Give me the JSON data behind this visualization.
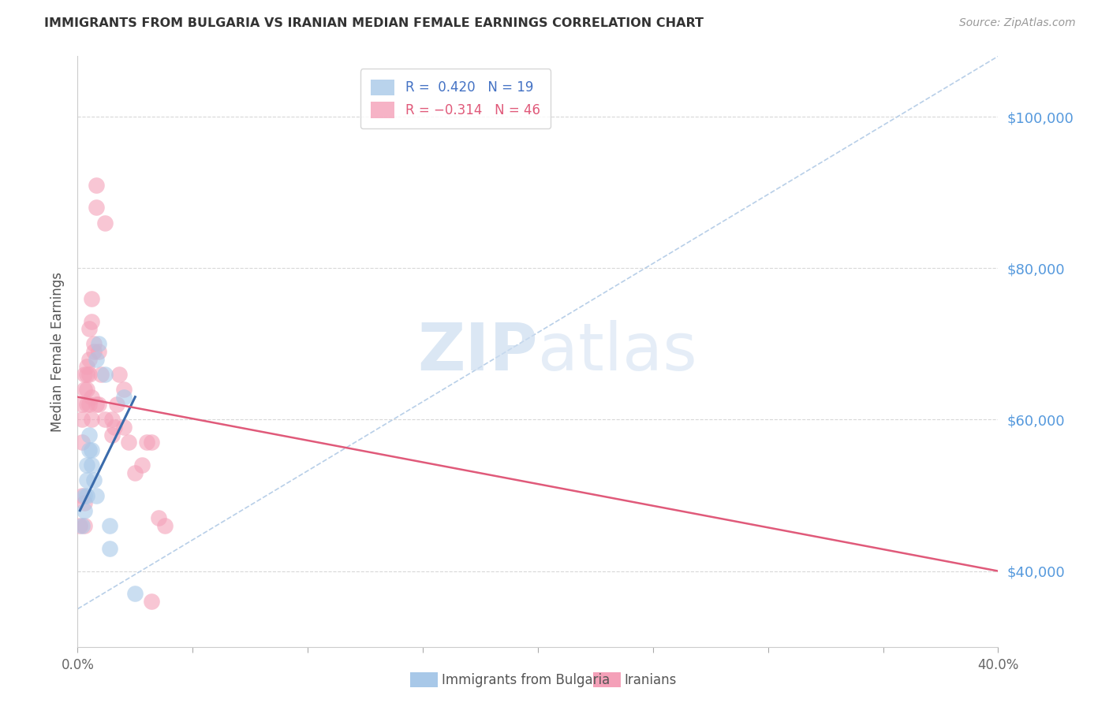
{
  "title": "IMMIGRANTS FROM BULGARIA VS IRANIAN MEDIAN FEMALE EARNINGS CORRELATION CHART",
  "source": "Source: ZipAtlas.com",
  "ylabel": "Median Female Earnings",
  "xlim": [
    0.0,
    0.4
  ],
  "ylim": [
    30000,
    108000
  ],
  "yticks": [
    40000,
    60000,
    80000,
    100000
  ],
  "ytick_labels": [
    "$40,000",
    "$60,000",
    "$80,000",
    "$100,000"
  ],
  "xticks": [
    0.0,
    0.05,
    0.1,
    0.15,
    0.2,
    0.25,
    0.3,
    0.35,
    0.4
  ],
  "xtick_labels": [
    "0.0%",
    "",
    "",
    "",
    "",
    "",
    "",
    "",
    "40.0%"
  ],
  "bg_color": "#ffffff",
  "grid_color": "#d8d8d8",
  "right_tick_color": "#5599dd",
  "bulgaria_color": "#a8c8e8",
  "iran_color": "#f4a0b8",
  "bulgaria_trendline_color": "#3a6bab",
  "iran_trendline_color": "#e05a7a",
  "dashed_line_color": "#b8cfe8",
  "watermark_color": "#ccddf0",
  "legend_blue_text": "#4472c4",
  "legend_pink_text": "#e05a7a",
  "footer_labels": [
    "Immigrants from Bulgaria",
    "Iranians"
  ],
  "footer_colors": [
    "#a8c8e8",
    "#f4a0b8"
  ],
  "bulgaria_points": [
    [
      0.002,
      46000
    ],
    [
      0.003,
      48000
    ],
    [
      0.003,
      50000
    ],
    [
      0.004,
      50000
    ],
    [
      0.004,
      52000
    ],
    [
      0.004,
      54000
    ],
    [
      0.005,
      56000
    ],
    [
      0.005,
      58000
    ],
    [
      0.006,
      54000
    ],
    [
      0.006,
      56000
    ],
    [
      0.007,
      52000
    ],
    [
      0.008,
      50000
    ],
    [
      0.008,
      68000
    ],
    [
      0.009,
      70000
    ],
    [
      0.012,
      66000
    ],
    [
      0.014,
      46000
    ],
    [
      0.014,
      43000
    ],
    [
      0.02,
      63000
    ],
    [
      0.025,
      37000
    ]
  ],
  "iran_points": [
    [
      0.001,
      46000
    ],
    [
      0.002,
      50000
    ],
    [
      0.002,
      62000
    ],
    [
      0.002,
      57000
    ],
    [
      0.002,
      60000
    ],
    [
      0.003,
      46000
    ],
    [
      0.003,
      49000
    ],
    [
      0.003,
      64000
    ],
    [
      0.003,
      66000
    ],
    [
      0.004,
      62000
    ],
    [
      0.004,
      64000
    ],
    [
      0.004,
      66000
    ],
    [
      0.004,
      67000
    ],
    [
      0.005,
      62000
    ],
    [
      0.005,
      66000
    ],
    [
      0.005,
      68000
    ],
    [
      0.005,
      72000
    ],
    [
      0.006,
      60000
    ],
    [
      0.006,
      63000
    ],
    [
      0.006,
      73000
    ],
    [
      0.006,
      76000
    ],
    [
      0.007,
      69000
    ],
    [
      0.007,
      70000
    ],
    [
      0.008,
      62000
    ],
    [
      0.008,
      88000
    ],
    [
      0.008,
      91000
    ],
    [
      0.009,
      62000
    ],
    [
      0.009,
      69000
    ],
    [
      0.01,
      66000
    ],
    [
      0.012,
      60000
    ],
    [
      0.012,
      86000
    ],
    [
      0.015,
      58000
    ],
    [
      0.015,
      60000
    ],
    [
      0.016,
      59000
    ],
    [
      0.017,
      62000
    ],
    [
      0.018,
      66000
    ],
    [
      0.02,
      59000
    ],
    [
      0.02,
      64000
    ],
    [
      0.022,
      57000
    ],
    [
      0.025,
      53000
    ],
    [
      0.028,
      54000
    ],
    [
      0.03,
      57000
    ],
    [
      0.032,
      57000
    ],
    [
      0.035,
      47000
    ],
    [
      0.038,
      46000
    ],
    [
      0.032,
      36000
    ]
  ],
  "iran_trendline_x": [
    0.0,
    0.4
  ],
  "iran_trendline_y": [
    63000,
    40000
  ],
  "bulgaria_trendline_x": [
    0.001,
    0.025
  ],
  "bulgaria_trendline_y": [
    48000,
    63000
  ],
  "dashed_line_x": [
    0.0,
    0.4
  ],
  "dashed_line_y": [
    35000,
    108000
  ]
}
